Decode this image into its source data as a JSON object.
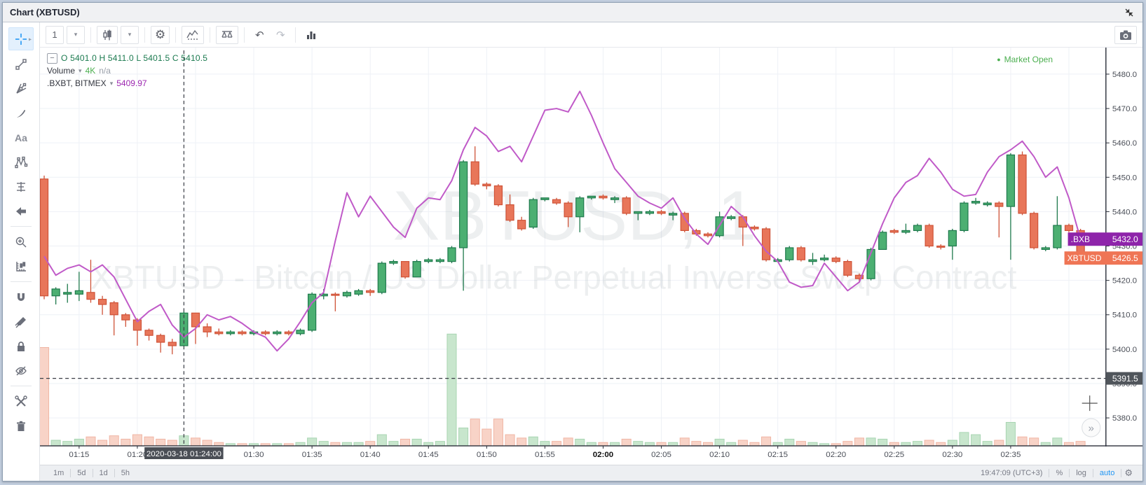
{
  "window": {
    "title": "Chart (XBTUSD)"
  },
  "top_toolbar": {
    "interval": "1",
    "buttons": [
      "interval-dropdown",
      "chart-style-candles",
      "chart-style-dropdown",
      "chart-properties",
      "insert-indicator",
      "compare-symbol",
      "undo",
      "redo",
      "panel-layout",
      "snapshot-camera"
    ]
  },
  "sidebar": {
    "text_tool_label": "Aa",
    "tools": [
      "crosshair",
      "trend-line",
      "gann-fan",
      "brush",
      "text",
      "xabcd-pattern",
      "forecast",
      "arrow-marker",
      "zoom-in",
      "measure",
      "magnet",
      "stay-in-drawing-mode",
      "lock-all-drawings",
      "hide-all-drawings",
      "show-objects-tree",
      "remove-all-drawings"
    ]
  },
  "legend": {
    "ohlc": "O 5401.0 H 5411.0 L 5401.5 C 5410.5",
    "volume_label": "Volume",
    "volume_value": "4K",
    "volume_change": "n/a",
    "index_label": ".BXBT, BITMEX",
    "index_value": "5409.97",
    "collapse_glyph": "−",
    "caret_glyph": "▾"
  },
  "market_status": {
    "dot": "●",
    "label": "Market Open"
  },
  "price_scale": {
    "ticks": [
      "5480.0",
      "5470.0",
      "5460.0",
      "5450.0",
      "5440.0",
      "5430.0",
      "5420.0",
      "5410.0",
      "5400.0",
      "5390.0",
      "5380.0"
    ],
    "index_tag": {
      "label": ".BXB",
      "value": "5432.0",
      "price": 5432.0
    },
    "last_tag": {
      "label": "XBTUSD",
      "value": "5426.5",
      "price": 5426.5
    },
    "crosshair_tag": {
      "value": "5391.5",
      "price": 5391.5
    }
  },
  "time_scale": {
    "ticks": [
      {
        "label": "01:15",
        "m": 3
      },
      {
        "label": "01:20",
        "m": 8
      },
      {
        "label": "01:30",
        "m": 18
      },
      {
        "label": "01:35",
        "m": 23
      },
      {
        "label": "01:40",
        "m": 28
      },
      {
        "label": "01:45",
        "m": 33
      },
      {
        "label": "01:50",
        "m": 38
      },
      {
        "label": "01:55",
        "m": 43
      },
      {
        "label": "02:00",
        "m": 48,
        "bold": true
      },
      {
        "label": "02:05",
        "m": 53
      },
      {
        "label": "02:10",
        "m": 58
      },
      {
        "label": "02:15",
        "m": 63
      },
      {
        "label": "02:20",
        "m": 68
      },
      {
        "label": "02:25",
        "m": 73
      },
      {
        "label": "02:30",
        "m": 78
      },
      {
        "label": "02:35",
        "m": 83
      }
    ],
    "crosshair_tooltip": "2020-03-18 01:24:00",
    "crosshair_minute": 12
  },
  "bottom_toolbar": {
    "ranges": [
      "1m",
      "5d",
      "1d",
      "5h"
    ],
    "clock": "19:47:09 (UTC+3)",
    "percent": "%",
    "log": "log",
    "auto": "auto"
  },
  "watermark": {
    "line1": "XBTUSD, 1",
    "line2": "XBTUSD - Bitcoin / US Dollar Perpetual Inverse Swap Contract"
  },
  "more_button": "»",
  "colors": {
    "candle_up_fill": "#4caf72",
    "candle_up_stroke": "#1f7a4d",
    "candle_down_fill": "#e8765a",
    "candle_down_stroke": "#cf5338",
    "volume_up_fill": "#c8e6cd",
    "volume_up_stroke": "#a9d5b3",
    "volume_down_fill": "#f8d3c7",
    "volume_down_stroke": "#f0b6a5",
    "index_line": "#c05ac8",
    "index_tag_bg": "#8e24aa",
    "last_tag_bg": "#ef7555",
    "crosshair_tag_bg": "#50555b",
    "legend_green": "#1b7a4f",
    "accent_blue": "#2196f3",
    "status_green": "#4caf50",
    "grid": "#eef1f6",
    "axis_text": "#4a4e57"
  },
  "chart_data": {
    "type": "candlestick",
    "symbol": "XBTUSD",
    "interval": "1m",
    "start_time": "01:12",
    "note": "candles: [open, high, low, close, relative_volume_0-100, direction]; one per minute from start_time",
    "ylim": [
      5377,
      5484
    ],
    "candles": [
      [
        5449.5,
        5450.5,
        5414.5,
        5415.5,
        88,
        "r"
      ],
      [
        5415.5,
        5418,
        5413,
        5417.5,
        5,
        "g"
      ],
      [
        5416,
        5419,
        5413.5,
        5416.5,
        4,
        "g"
      ],
      [
        5416,
        5422.5,
        5414,
        5417,
        6,
        "g"
      ],
      [
        5416.5,
        5426,
        5413.5,
        5414.5,
        8,
        "r"
      ],
      [
        5414.5,
        5415.5,
        5410,
        5413,
        5,
        "r"
      ],
      [
        5413.5,
        5414,
        5404,
        5410,
        9,
        "r"
      ],
      [
        5410,
        5410.5,
        5406.5,
        5408.5,
        6,
        "r"
      ],
      [
        5408.5,
        5409,
        5401,
        5405.5,
        10,
        "r"
      ],
      [
        5405.5,
        5406,
        5402.5,
        5404,
        8,
        "r"
      ],
      [
        5404,
        5404.5,
        5399,
        5402,
        6,
        "r"
      ],
      [
        5402,
        5403,
        5398.5,
        5401,
        5,
        "r"
      ],
      [
        5401,
        5411,
        5401.5,
        5410.5,
        9,
        "g"
      ],
      [
        5410.5,
        5410.5,
        5401.5,
        5406.5,
        7,
        "r"
      ],
      [
        5406.5,
        5407.5,
        5403.5,
        5405,
        5,
        "r"
      ],
      [
        5405,
        5406,
        5404,
        5404.5,
        3,
        "r"
      ],
      [
        5404.5,
        5405.5,
        5404,
        5405,
        2,
        "g"
      ],
      [
        5405,
        5405.5,
        5404,
        5404.5,
        2,
        "r"
      ],
      [
        5404.5,
        5405.5,
        5404,
        5405,
        2,
        "g"
      ],
      [
        5405,
        5405.5,
        5404,
        5404.5,
        2,
        "r"
      ],
      [
        5404.5,
        5405.5,
        5404,
        5405,
        2,
        "g"
      ],
      [
        5405,
        5405.5,
        5404,
        5404.5,
        2,
        "r"
      ],
      [
        5404.5,
        5406,
        5404,
        5405.5,
        3,
        "g"
      ],
      [
        5405.5,
        5416.5,
        5405,
        5416,
        7,
        "g"
      ],
      [
        5415.5,
        5417.5,
        5414.5,
        5416,
        4,
        "g"
      ],
      [
        5416,
        5416.5,
        5411,
        5416,
        3,
        "r"
      ],
      [
        5415.5,
        5417,
        5415,
        5416.5,
        3,
        "g"
      ],
      [
        5416,
        5417.5,
        5415.5,
        5417,
        3,
        "g"
      ],
      [
        5417,
        5417.5,
        5415.5,
        5416.5,
        4,
        "r"
      ],
      [
        5416.5,
        5425.5,
        5416,
        5425,
        10,
        "g"
      ],
      [
        5425,
        5426,
        5424.5,
        5425.5,
        4,
        "g"
      ],
      [
        5425.5,
        5425.5,
        5420.5,
        5421,
        6,
        "r"
      ],
      [
        5421,
        5426,
        5421,
        5425.5,
        6,
        "g"
      ],
      [
        5425.5,
        5426.5,
        5425,
        5426,
        3,
        "g"
      ],
      [
        5425.5,
        5426.5,
        5425,
        5426,
        4,
        "g"
      ],
      [
        5425.5,
        5430,
        5425,
        5429.5,
        100,
        "g"
      ],
      [
        5429.5,
        5455,
        5417,
        5454.5,
        16,
        "g"
      ],
      [
        5454.5,
        5459,
        5447.5,
        5448,
        24,
        "r"
      ],
      [
        5448,
        5448.5,
        5446.5,
        5447.5,
        15,
        "r"
      ],
      [
        5447.5,
        5448,
        5441.5,
        5442,
        24,
        "r"
      ],
      [
        5442,
        5445,
        5437,
        5437.5,
        10,
        "r"
      ],
      [
        5437.5,
        5438.5,
        5434.5,
        5435,
        7,
        "r"
      ],
      [
        5435.5,
        5444,
        5435,
        5443.5,
        8,
        "g"
      ],
      [
        5443.5,
        5444,
        5443,
        5444,
        4,
        "g"
      ],
      [
        5443.5,
        5444,
        5442,
        5442.5,
        4,
        "r"
      ],
      [
        5442.5,
        5443,
        5435.5,
        5438.5,
        7,
        "r"
      ],
      [
        5438.5,
        5444.5,
        5434,
        5444,
        6,
        "g"
      ],
      [
        5444,
        5444.5,
        5443.5,
        5444.5,
        3,
        "g"
      ],
      [
        5444.5,
        5445,
        5443.5,
        5444,
        3,
        "r"
      ],
      [
        5443.5,
        5444.5,
        5442.5,
        5444,
        3,
        "g"
      ],
      [
        5444,
        5444.5,
        5439,
        5439.5,
        6,
        "r"
      ],
      [
        5439.5,
        5440,
        5437.5,
        5440,
        4,
        "g"
      ],
      [
        5439.5,
        5440.5,
        5439,
        5440,
        3,
        "g"
      ],
      [
        5440,
        5440.5,
        5439,
        5439.5,
        3,
        "r"
      ],
      [
        5439,
        5440,
        5437.5,
        5439.5,
        3,
        "g"
      ],
      [
        5439.5,
        5440,
        5434,
        5434.5,
        7,
        "r"
      ],
      [
        5434.5,
        5435,
        5433,
        5433.5,
        4,
        "r"
      ],
      [
        5433.5,
        5434,
        5432.5,
        5433,
        3,
        "r"
      ],
      [
        5433,
        5440,
        5432.5,
        5438.5,
        6,
        "g"
      ],
      [
        5438,
        5439,
        5437.5,
        5438.5,
        3,
        "g"
      ],
      [
        5438.5,
        5439,
        5430,
        5435.5,
        5,
        "r"
      ],
      [
        5435.5,
        5436,
        5434.5,
        5435,
        3,
        "r"
      ],
      [
        5435,
        5435.5,
        5425.5,
        5426,
        8,
        "r"
      ],
      [
        5425.5,
        5426.5,
        5425.5,
        5426,
        3,
        "g"
      ],
      [
        5426,
        5430,
        5425.5,
        5429.5,
        6,
        "g"
      ],
      [
        5429.5,
        5430,
        5425.5,
        5426,
        4,
        "r"
      ],
      [
        5425.5,
        5428,
        5424.5,
        5426,
        3,
        "g"
      ],
      [
        5426,
        5427.5,
        5425.5,
        5426.5,
        2,
        "g"
      ],
      [
        5426.5,
        5427,
        5425,
        5425.5,
        2,
        "r"
      ],
      [
        5425.5,
        5426,
        5421,
        5421.5,
        4,
        "r"
      ],
      [
        5421.5,
        5422,
        5419.5,
        5420.5,
        7,
        "r"
      ],
      [
        5420.5,
        5429.5,
        5420,
        5429,
        7,
        "g"
      ],
      [
        5429,
        5434.5,
        5429,
        5434,
        6,
        "g"
      ],
      [
        5434.5,
        5435,
        5433.5,
        5434,
        3,
        "r"
      ],
      [
        5434,
        5436.5,
        5433.5,
        5434.5,
        3,
        "g"
      ],
      [
        5434.5,
        5436.5,
        5434,
        5436,
        4,
        "g"
      ],
      [
        5436,
        5436.5,
        5429.5,
        5430,
        5,
        "r"
      ],
      [
        5430,
        5430.5,
        5429,
        5430,
        3,
        "r"
      ],
      [
        5430,
        5435,
        5426,
        5434.5,
        5,
        "g"
      ],
      [
        5434.5,
        5443,
        5434,
        5442.5,
        12,
        "g"
      ],
      [
        5442.5,
        5444,
        5442,
        5443,
        10,
        "g"
      ],
      [
        5442,
        5443,
        5441.5,
        5442.5,
        4,
        "g"
      ],
      [
        5442.5,
        5443,
        5432.5,
        5441.5,
        5,
        "r"
      ],
      [
        5441.5,
        5457,
        5426,
        5456.5,
        21,
        "g"
      ],
      [
        5456.5,
        5457.5,
        5439,
        5439.5,
        8,
        "r"
      ],
      [
        5439.5,
        5440,
        5429,
        5429.5,
        7,
        "r"
      ],
      [
        5429,
        5430,
        5428.5,
        5429.5,
        3,
        "g"
      ],
      [
        5429.5,
        5444.5,
        5429,
        5436,
        7,
        "g"
      ],
      [
        5436,
        5436.5,
        5434,
        5434.5,
        3,
        "r"
      ],
      [
        5434.5,
        5435,
        5426,
        5426.5,
        4,
        "r"
      ]
    ],
    "index_line": {
      "name": ".BXBT",
      "values": [
        5427,
        5421.5,
        5423.5,
        5424.5,
        5422.5,
        5424.5,
        5421,
        5414.5,
        5408,
        5411,
        5413,
        5407,
        5403.5,
        5406,
        5410,
        5408.5,
        5409.5,
        5407.5,
        5405,
        5403.5,
        5399.5,
        5403,
        5408,
        5413.5,
        5416.5,
        5431.5,
        5445.5,
        5438.5,
        5444.5,
        5440,
        5435.5,
        5432.5,
        5441,
        5444,
        5443.5,
        5449,
        5458,
        5464.5,
        5462,
        5457.5,
        5459,
        5454.5,
        5462,
        5469.5,
        5470,
        5469,
        5475,
        5468,
        5460,
        5452.5,
        5448.5,
        5444.5,
        5442.5,
        5441,
        5444,
        5438,
        5433.5,
        5430.5,
        5436,
        5441.5,
        5438.5,
        5433,
        5428.5,
        5425.5,
        5419.5,
        5418,
        5418.5,
        5425,
        5421,
        5417,
        5419.5,
        5428,
        5436.5,
        5444,
        5448.5,
        5450.5,
        5455.5,
        5451.5,
        5446.5,
        5444.5,
        5445,
        5451.5,
        5456,
        5458,
        5460.5,
        5456,
        5450,
        5453,
        5444,
        5432
      ]
    }
  }
}
